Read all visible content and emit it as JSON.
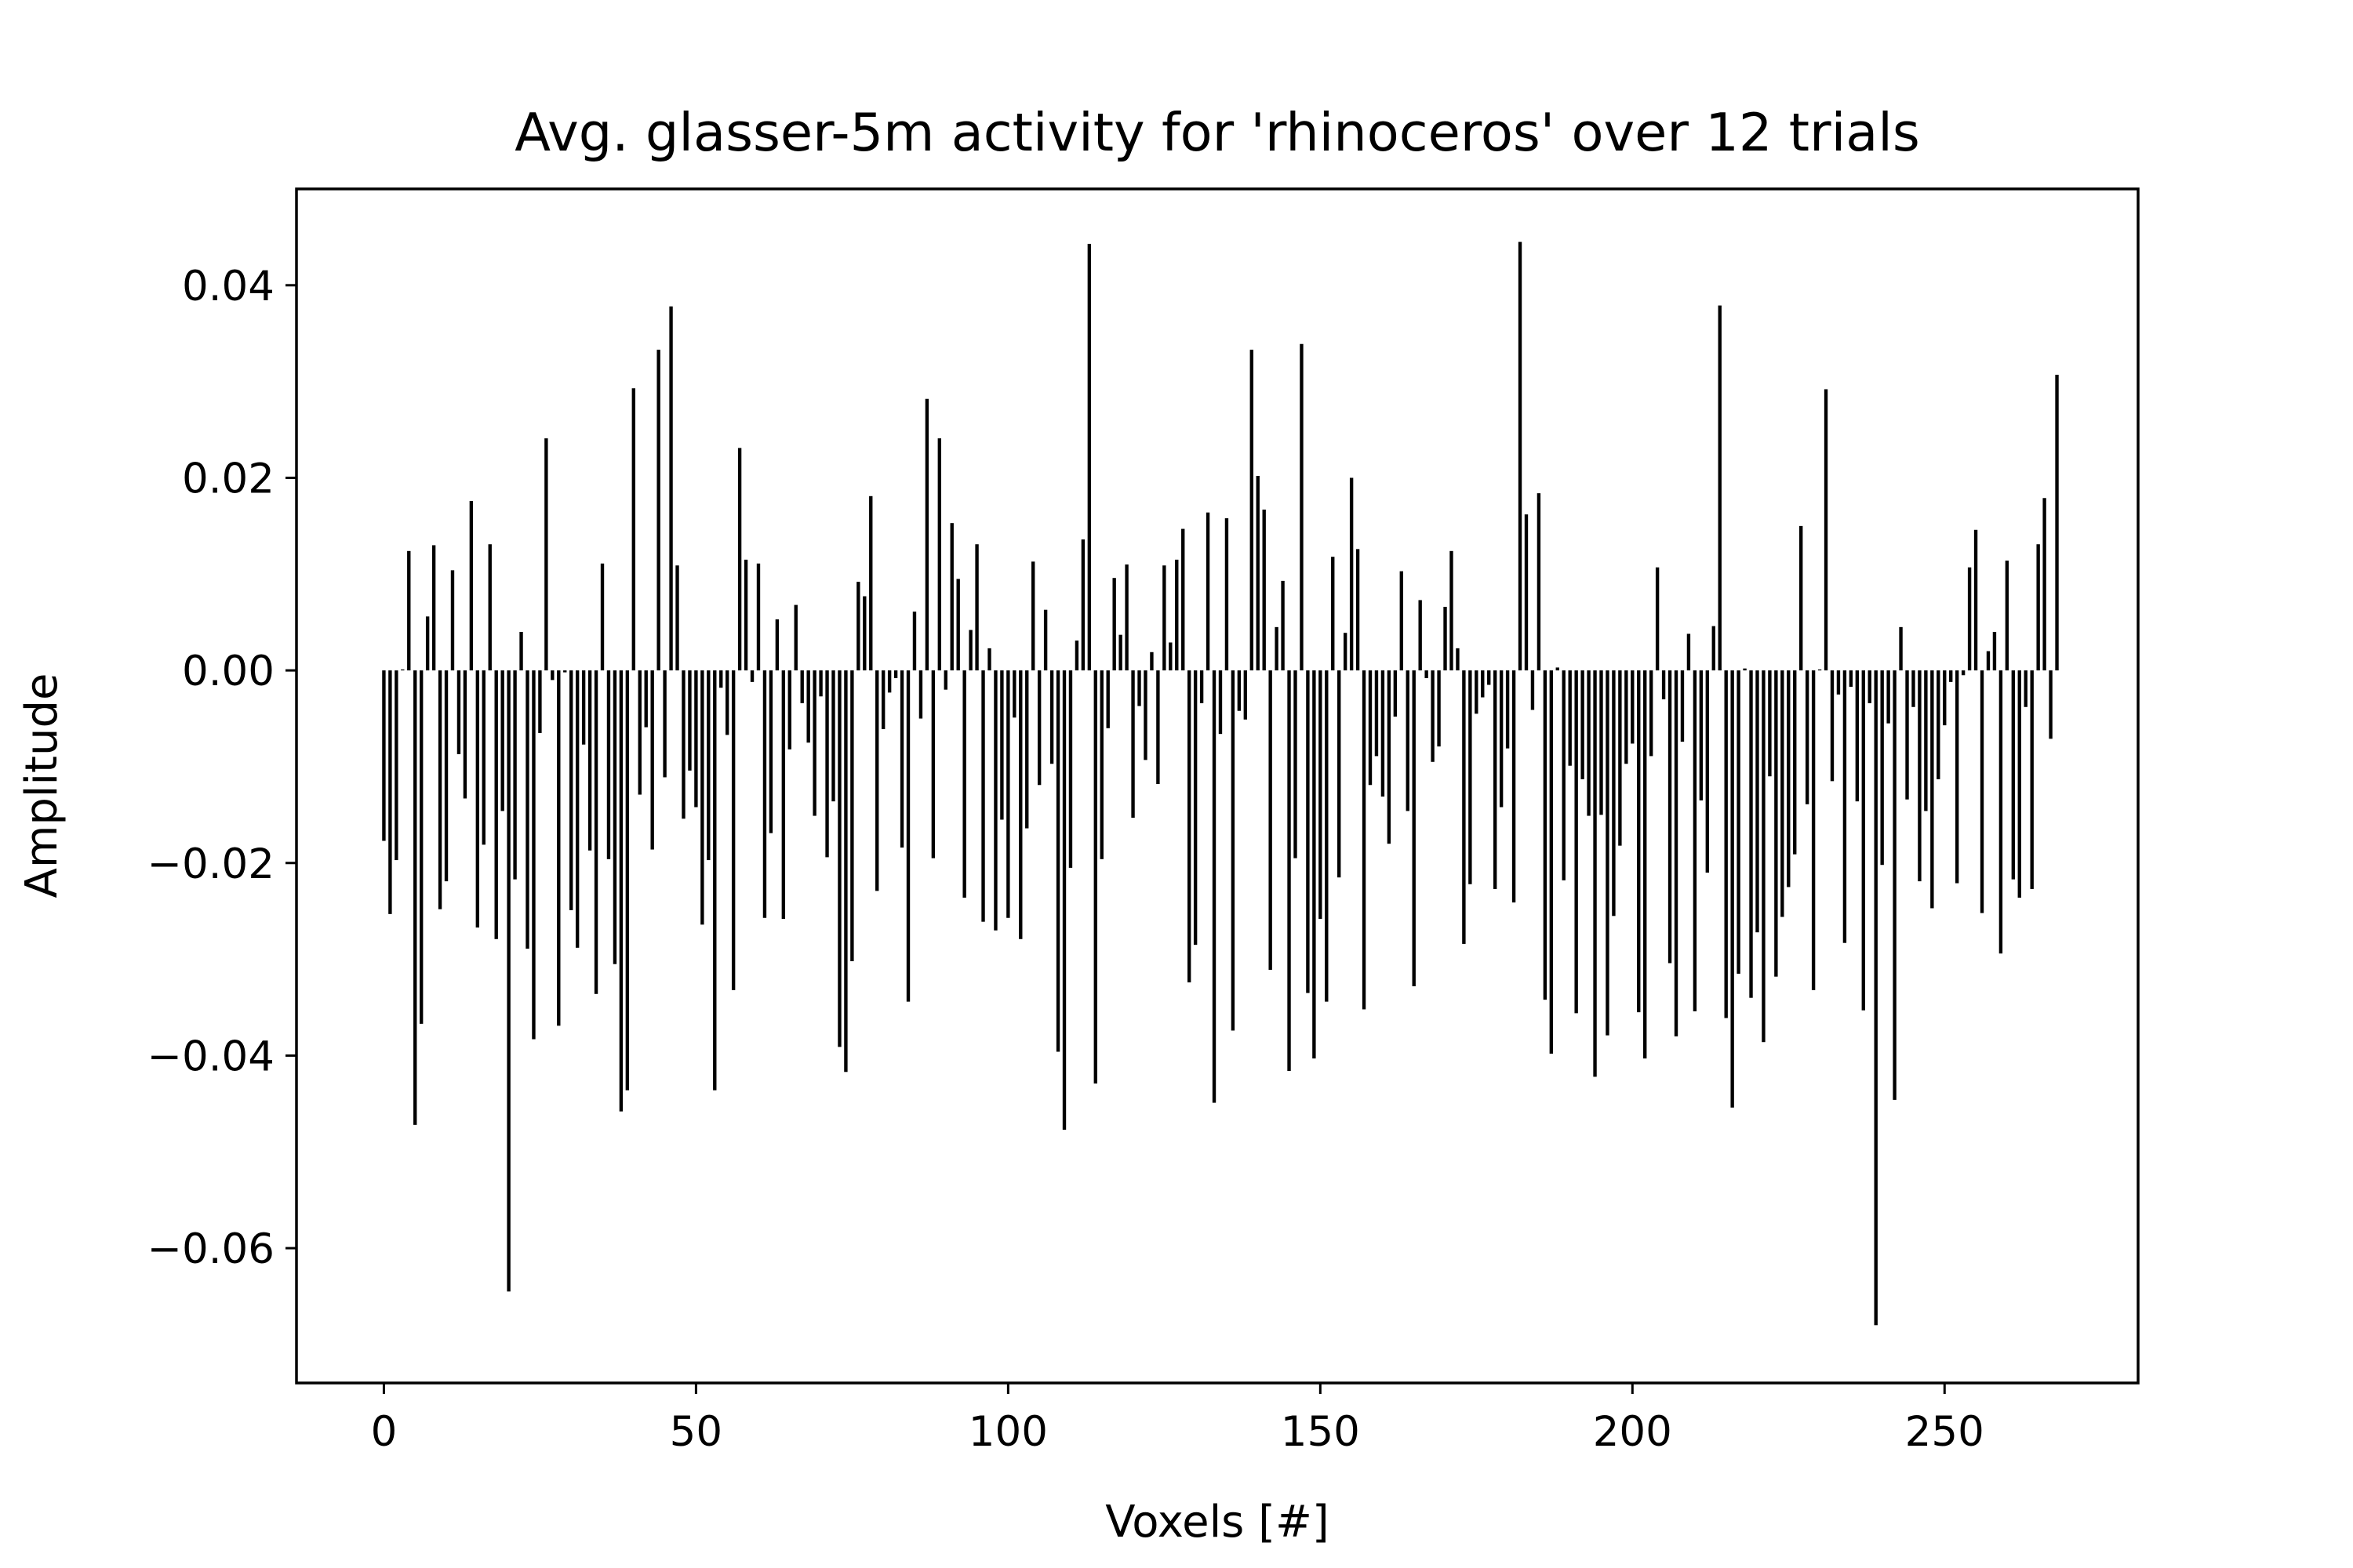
{
  "chart_data": {
    "type": "bar",
    "title": "Avg. glasser-5m activity for 'rhinoceros' over 12 trials",
    "xlabel": "Voxels [#]",
    "ylabel": "Amplitude",
    "xlim": [
      -14,
      281
    ],
    "ylim": [
      -0.074,
      0.05
    ],
    "xticks": [
      0,
      50,
      100,
      150,
      200,
      250
    ],
    "xtick_labels": [
      "0",
      "50",
      "100",
      "150",
      "200",
      "250"
    ],
    "yticks": [
      0.04,
      0.02,
      0.0,
      -0.02,
      -0.04,
      -0.06
    ],
    "ytick_labels": [
      "0.04",
      "0.02",
      "0.00",
      "−0.02",
      "−0.04",
      "−0.06"
    ],
    "grid": false,
    "legend": "none",
    "bar_color": "#000000",
    "x_start": 0,
    "values": [
      -0.0177,
      -0.0253,
      -0.0197,
      0.0001,
      0.0124,
      -0.0472,
      -0.0367,
      0.0056,
      0.013,
      -0.0248,
      -0.0219,
      0.0104,
      -0.0087,
      -0.0133,
      0.0176,
      -0.0267,
      -0.0181,
      0.0131,
      -0.0279,
      -0.0146,
      -0.0645,
      -0.0217,
      0.004,
      -0.0289,
      -0.0383,
      -0.0065,
      0.0241,
      -0.001,
      -0.0369,
      -0.0002,
      -0.0249,
      -0.0288,
      -0.0077,
      -0.0187,
      -0.0336,
      0.0111,
      -0.0196,
      -0.0305,
      -0.0458,
      -0.0436,
      0.0293,
      -0.0129,
      -0.0059,
      -0.0186,
      0.0333,
      -0.0111,
      0.0378,
      0.0109,
      -0.0154,
      -0.0104,
      -0.0142,
      -0.0264,
      -0.0197,
      -0.0436,
      -0.0018,
      -0.0067,
      -0.0332,
      0.0231,
      0.0115,
      -0.0012,
      0.0111,
      -0.0257,
      -0.0169,
      0.0053,
      -0.0258,
      -0.0082,
      0.0068,
      -0.0034,
      -0.0075,
      -0.0151,
      -0.0027,
      -0.0194,
      -0.0136,
      -0.0391,
      -0.0417,
      -0.0302,
      0.0092,
      0.0077,
      0.0181,
      -0.0229,
      -0.0061,
      -0.0023,
      -0.0008,
      -0.0184,
      -0.0344,
      0.0061,
      -0.005,
      0.0282,
      -0.0195,
      0.0241,
      -0.002,
      0.0153,
      0.0095,
      -0.0236,
      0.0042,
      0.0131,
      -0.0261,
      0.0023,
      -0.027,
      -0.0155,
      -0.0257,
      -0.0049,
      -0.0279,
      -0.0164,
      0.0113,
      -0.0119,
      0.0063,
      -0.0097,
      -0.0396,
      -0.0477,
      -0.0205,
      0.0031,
      0.0136,
      0.0443,
      -0.0429,
      -0.0196,
      -0.006,
      0.0096,
      0.0037,
      0.011,
      -0.0153,
      -0.0037,
      -0.0093,
      0.0019,
      -0.0118,
      0.0109,
      0.0029,
      0.0115,
      0.0147,
      -0.0324,
      -0.0285,
      -0.0034,
      0.0164,
      -0.0449,
      -0.0066,
      0.0158,
      -0.0374,
      -0.0042,
      -0.0051,
      0.0333,
      0.0202,
      0.0167,
      -0.0311,
      0.0045,
      0.0093,
      -0.0416,
      -0.0195,
      0.0339,
      -0.0335,
      -0.0403,
      -0.0258,
      -0.0344,
      0.0118,
      -0.0215,
      0.0039,
      0.02,
      0.0126,
      -0.0352,
      -0.0119,
      -0.0089,
      -0.0131,
      -0.018,
      -0.0048,
      0.0103,
      -0.0146,
      -0.0328,
      0.0073,
      -0.0008,
      -0.0095,
      -0.0079,
      0.0066,
      0.0124,
      0.0023,
      -0.0284,
      -0.0222,
      -0.0045,
      -0.0028,
      -0.0015,
      -0.0227,
      -0.0142,
      -0.0081,
      -0.0241,
      0.0445,
      0.0162,
      -0.0041,
      0.0184,
      -0.0342,
      -0.0398,
      0.0003,
      -0.0218,
      -0.0099,
      -0.0356,
      -0.0113,
      -0.0151,
      -0.0422,
      -0.015,
      -0.0379,
      -0.0255,
      -0.0182,
      -0.0097,
      -0.0076,
      -0.0355,
      -0.0403,
      -0.0089,
      0.0107,
      -0.003,
      -0.0304,
      -0.038,
      -0.0074,
      0.0038,
      -0.0354,
      -0.0135,
      -0.021,
      0.0046,
      0.0379,
      -0.0361,
      -0.0454,
      -0.0315,
      0.0002,
      -0.034,
      -0.0272,
      -0.0386,
      -0.011,
      -0.0318,
      -0.0256,
      -0.0225,
      -0.0191,
      0.015,
      -0.0139,
      -0.0332,
      0.0001,
      0.0292,
      -0.0115,
      -0.0025,
      -0.0283,
      -0.0017,
      -0.0136,
      -0.0353,
      -0.0034,
      -0.068,
      -0.0202,
      -0.0055,
      -0.0446,
      0.0045,
      -0.0134,
      -0.0038,
      -0.0219,
      -0.0146,
      -0.0247,
      -0.0113,
      -0.0057,
      -0.0012,
      -0.0221,
      -0.0005,
      0.0107,
      0.0146,
      -0.0252,
      0.002,
      0.004,
      -0.0294,
      0.0114,
      -0.0217,
      -0.0236,
      -0.0038,
      -0.0227,
      0.0131,
      0.0179,
      -0.0071,
      0.0307
    ]
  }
}
